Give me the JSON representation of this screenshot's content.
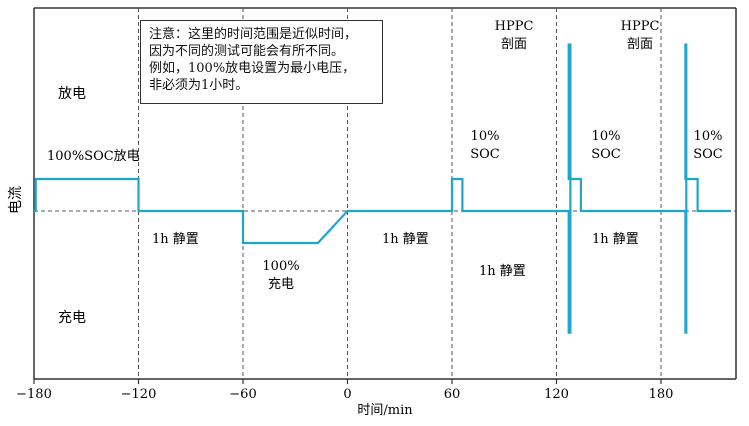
{
  "figure": {
    "ylabel": "电流",
    "xlabel": "时间/min",
    "x_ticks": [
      "−180",
      "−120",
      "−60",
      "0",
      "60",
      "120",
      "180"
    ],
    "note": [
      "注意：这里的时间范围是近似时间，",
      "因为不同的测试可能会有所不同。",
      "例如，100%放电设置为最小电压，",
      "非必须为1小时。"
    ],
    "labels": {
      "discharge": "放电",
      "charge": "充电",
      "soc100_discharge": "100%SOC放电",
      "rest_1": "1h 静置",
      "charge100_pct": "100%",
      "charge100_text": "充电",
      "rest_2": "1h 静置",
      "rest_3": "1h 静置",
      "rest_4": "1h 静置",
      "soc10_a_pct": "10%",
      "soc10_a_text": "SOC",
      "soc10_b_pct": "10%",
      "soc10_b_text": "SOC",
      "soc10_c_pct": "10%",
      "soc10_c_text": "SOC",
      "hppc_1_top": "HPPC",
      "hppc_1_bottom": "剖面",
      "hppc_2_top": "HPPC",
      "hppc_2_bottom": "剖面"
    },
    "colors": {
      "trace": "#1ea6cf",
      "axis": "#333333",
      "dashed": "#555555"
    }
  },
  "chart_data": {
    "type": "line",
    "title": "",
    "xlabel": "时间/min",
    "ylabel": "电流",
    "xlim": [
      -180,
      220
    ],
    "x_ticks": [
      -180,
      -120,
      -60,
      0,
      60,
      120,
      180
    ],
    "y_scale": "relative (discharge positive, charge negative); no numeric y ticks",
    "series": [
      {
        "x": [
          -180,
          -179,
          -179,
          -120,
          -120,
          -60,
          -60,
          -17,
          0,
          60,
          60,
          66,
          66,
          127,
          127,
          128,
          128,
          127,
          127,
          128,
          128,
          134,
          134,
          194,
          194,
          194.5,
          194.5,
          194,
          194,
          195,
          195,
          201,
          201,
          220
        ],
        "y": [
          0,
          0,
          1,
          1,
          0,
          0,
          -1,
          -1,
          0,
          0,
          1,
          1,
          0,
          0,
          -3.8,
          -3.8,
          5.2,
          5.2,
          1,
          1,
          1,
          1,
          0,
          0,
          -3.8,
          -3.8,
          5.2,
          5.2,
          1,
          1,
          1,
          1,
          0,
          0
        ]
      }
    ],
    "grid": "dashed vertical lines at -120, -60, 0, 60, 120, 180; dashed zero-current baseline"
  }
}
